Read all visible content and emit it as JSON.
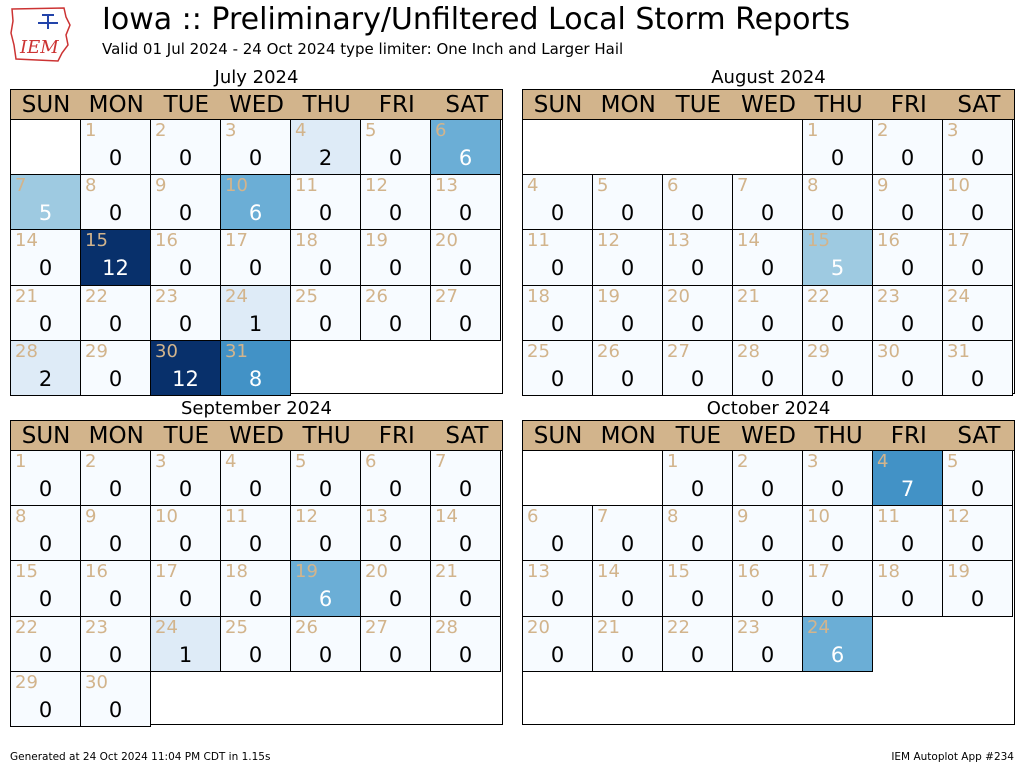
{
  "header": {
    "title": "Iowa :: Preliminary/Unfiltered Local Storm Reports",
    "subtitle": "Valid 01 Jul 2024 - 24 Oct 2024 type limiter: One Inch and Larger Hail",
    "logo_text": "IEM"
  },
  "footer": {
    "generated": "Generated at 24 Oct 2024 11:04 PM CDT in 1.15s",
    "app": "IEM Autoplot App #234"
  },
  "weekdays": [
    "SUN",
    "MON",
    "TUE",
    "WED",
    "THU",
    "FRI",
    "SAT"
  ],
  "colors": {
    "header_band": "#d2b48c",
    "day_number": "#d2b48c",
    "scale": [
      "#f7fbff",
      "#deebf7",
      "#c6dbef",
      "#9ecae1",
      "#6baed6",
      "#4292c6",
      "#2171b5",
      "#08519c",
      "#08306b"
    ]
  },
  "chart_data": {
    "type": "calendar-heatmap",
    "value_label": "count of reports",
    "months": [
      {
        "title": "July 2024",
        "first_weekday": 1,
        "values": [
          0,
          0,
          0,
          2,
          0,
          6,
          5,
          0,
          0,
          6,
          0,
          0,
          0,
          0,
          12,
          0,
          0,
          0,
          0,
          0,
          0,
          0,
          0,
          1,
          0,
          0,
          0,
          2,
          0,
          12,
          8
        ]
      },
      {
        "title": "August 2024",
        "first_weekday": 4,
        "values": [
          0,
          0,
          0,
          0,
          0,
          0,
          0,
          0,
          0,
          0,
          0,
          0,
          0,
          0,
          5,
          0,
          0,
          0,
          0,
          0,
          0,
          0,
          0,
          0,
          0,
          0,
          0,
          0,
          0,
          0,
          0
        ]
      },
      {
        "title": "September 2024",
        "first_weekday": 0,
        "values": [
          0,
          0,
          0,
          0,
          0,
          0,
          0,
          0,
          0,
          0,
          0,
          0,
          0,
          0,
          0,
          0,
          0,
          0,
          6,
          0,
          0,
          0,
          0,
          1,
          0,
          0,
          0,
          0,
          0,
          0
        ]
      },
      {
        "title": "October 2024",
        "first_weekday": 2,
        "values": [
          0,
          0,
          0,
          7,
          0,
          0,
          0,
          0,
          0,
          0,
          0,
          0,
          0,
          0,
          0,
          0,
          0,
          0,
          0,
          0,
          0,
          0,
          0,
          6
        ]
      }
    ]
  }
}
